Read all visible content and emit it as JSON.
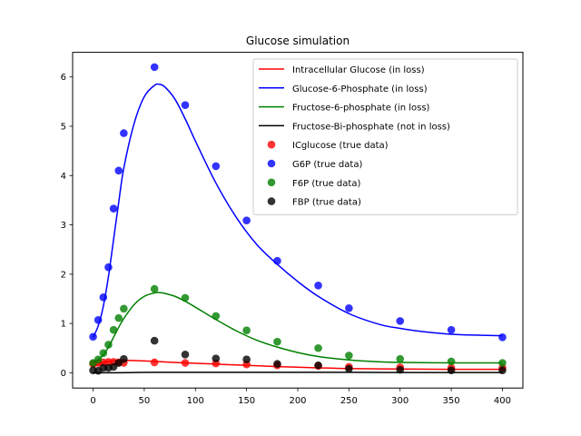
{
  "chart_data": {
    "type": "line",
    "title": "Glucose simulation",
    "xlabel": "",
    "ylabel": "",
    "xlim": [
      -20,
      420
    ],
    "ylim": [
      -0.31,
      6.5
    ],
    "x_ticks": [
      0,
      50,
      100,
      150,
      200,
      250,
      300,
      350,
      400
    ],
    "y_ticks": [
      0,
      1,
      2,
      3,
      4,
      5,
      6
    ],
    "grid": false,
    "legend_position": "top-right",
    "lines": [
      {
        "name": "Intracellular Glucose (in loss)",
        "color": "#ff0000",
        "x": [
          0,
          5,
          10,
          20,
          30,
          45,
          60,
          90,
          120,
          150,
          180,
          220,
          250,
          300,
          350,
          400
        ],
        "y": [
          0.12,
          0.17,
          0.21,
          0.24,
          0.25,
          0.245,
          0.23,
          0.2,
          0.175,
          0.15,
          0.125,
          0.1,
          0.085,
          0.075,
          0.07,
          0.07
        ]
      },
      {
        "name": "Glucose-6-Phosphate (in loss)",
        "color": "#0000ff",
        "x": [
          0,
          5,
          10,
          15,
          20,
          25,
          30,
          40,
          50,
          60,
          65,
          70,
          80,
          90,
          100,
          120,
          140,
          160,
          180,
          200,
          220,
          250,
          280,
          300,
          320,
          350,
          380,
          400
        ],
        "y": [
          0.72,
          0.95,
          1.35,
          1.95,
          2.7,
          3.45,
          4.15,
          5.05,
          5.6,
          5.83,
          5.85,
          5.8,
          5.55,
          5.15,
          4.7,
          3.85,
          3.15,
          2.6,
          2.2,
          1.85,
          1.55,
          1.2,
          0.98,
          0.9,
          0.84,
          0.78,
          0.76,
          0.75
        ]
      },
      {
        "name": "Fructose-6-phosphate (in loss)",
        "color": "#008000",
        "x": [
          0,
          5,
          10,
          15,
          20,
          25,
          30,
          40,
          50,
          60,
          65,
          70,
          80,
          90,
          100,
          120,
          140,
          160,
          180,
          200,
          220,
          250,
          280,
          300,
          350,
          400
        ],
        "y": [
          0.2,
          0.26,
          0.36,
          0.52,
          0.72,
          0.92,
          1.1,
          1.38,
          1.55,
          1.62,
          1.625,
          1.61,
          1.55,
          1.45,
          1.33,
          1.08,
          0.85,
          0.66,
          0.52,
          0.41,
          0.33,
          0.26,
          0.22,
          0.21,
          0.2,
          0.2
        ]
      },
      {
        "name": "Fructose-Bi-phosphate (not in loss)",
        "color": "#000000",
        "x": [
          0,
          20,
          40,
          60,
          100,
          150,
          200,
          250,
          300,
          350,
          400
        ],
        "y": [
          0.0,
          0.0,
          0.005,
          0.01,
          0.01,
          0.01,
          0.01,
          0.01,
          0.005,
          0.005,
          0.005
        ]
      }
    ],
    "scatter": [
      {
        "name": "ICglucose (true data)",
        "color": "#ff0000",
        "x": [
          0,
          5,
          10,
          15,
          20,
          25,
          30,
          60,
          90,
          120,
          150,
          180,
          220,
          250,
          300,
          350,
          400
        ],
        "y": [
          0.18,
          0.2,
          0.21,
          0.22,
          0.22,
          0.21,
          0.2,
          0.21,
          0.2,
          0.19,
          0.17,
          0.15,
          0.14,
          0.12,
          0.11,
          0.1,
          0.1
        ]
      },
      {
        "name": "G6P (true data)",
        "color": "#0000ff",
        "x": [
          0,
          5,
          10,
          15,
          20,
          25,
          30,
          60,
          90,
          120,
          150,
          180,
          220,
          250,
          300,
          350,
          400
        ],
        "y": [
          0.73,
          1.07,
          1.53,
          2.14,
          3.33,
          4.1,
          4.86,
          6.2,
          5.43,
          4.19,
          3.09,
          2.27,
          1.77,
          1.31,
          1.05,
          0.87,
          0.72
        ]
      },
      {
        "name": "F6P (true data)",
        "color": "#008000",
        "x": [
          0,
          5,
          10,
          15,
          20,
          25,
          30,
          60,
          90,
          120,
          150,
          180,
          220,
          250,
          300,
          350,
          400
        ],
        "y": [
          0.2,
          0.27,
          0.4,
          0.57,
          0.87,
          1.11,
          1.3,
          1.7,
          1.52,
          1.15,
          0.86,
          0.63,
          0.5,
          0.35,
          0.28,
          0.23,
          0.2
        ]
      },
      {
        "name": "FBP (true data)",
        "color": "#000000",
        "x": [
          0,
          5,
          10,
          15,
          20,
          25,
          30,
          60,
          90,
          120,
          150,
          180,
          220,
          250,
          300,
          350,
          400
        ],
        "y": [
          0.05,
          0.04,
          0.1,
          0.1,
          0.12,
          0.2,
          0.28,
          0.65,
          0.37,
          0.29,
          0.27,
          0.18,
          0.15,
          0.08,
          0.06,
          0.05,
          0.05
        ]
      }
    ]
  }
}
